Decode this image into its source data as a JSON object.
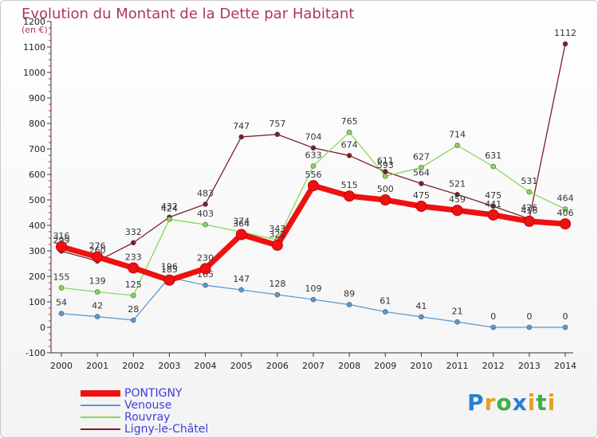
{
  "header": {
    "title": "Evolution du Montant de la Dette par Habitant",
    "unit": "(en €)"
  },
  "logo": {
    "text": "Proxiti"
  },
  "chart_data": {
    "type": "line",
    "title": "Evolution du Montant de la Dette par Habitant",
    "ylabel": "(en €)",
    "x": [
      "2000",
      "2001",
      "2002",
      "2003",
      "2004",
      "2005",
      "2006",
      "2007",
      "2008",
      "2009",
      "2010",
      "2011",
      "2012",
      "2013",
      "2014"
    ],
    "ylim": [
      -100,
      1200
    ],
    "yticks": [
      -100,
      0,
      100,
      200,
      300,
      400,
      500,
      600,
      700,
      800,
      900,
      1000,
      1100,
      1200
    ],
    "grid": false,
    "legend": "bottom-left",
    "series": [
      {
        "name": "Ligny-le-Châtel",
        "color": "#7a1f2a",
        "values": [
          299,
          260,
          332,
          432,
          483,
          747,
          757,
          704,
          674,
          611,
          564,
          521,
          475,
          426,
          1112
        ]
      },
      {
        "name": "Rouvray",
        "color": "#88d858",
        "values": [
          155,
          139,
          125,
          424,
          403,
          374,
          343,
          633,
          765,
          593,
          627,
          714,
          631,
          531,
          464
        ]
      },
      {
        "name": "Venouse",
        "color": "#5a9ad0",
        "values": [
          54,
          42,
          28,
          196,
          165,
          147,
          128,
          109,
          89,
          61,
          41,
          21,
          0,
          0,
          0
        ]
      },
      {
        "name": "PONTIGNY",
        "color": "#ee1111",
        "values": [
          316,
          276,
          233,
          185,
          230,
          364,
          322,
          556,
          515,
          500,
          475,
          459,
          441,
          416,
          406
        ]
      }
    ]
  }
}
